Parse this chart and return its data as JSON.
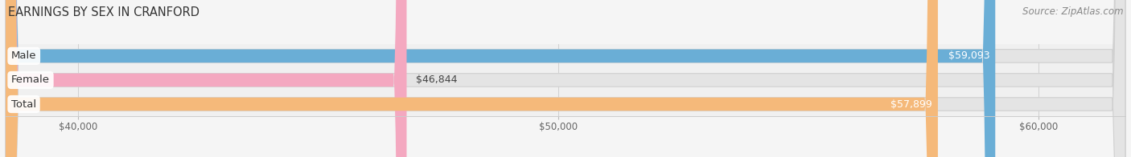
{
  "title": "EARNINGS BY SEX IN CRANFORD",
  "source": "Source: ZipAtlas.com",
  "categories": [
    "Male",
    "Female",
    "Total"
  ],
  "values": [
    59093,
    46844,
    57899
  ],
  "bar_colors": [
    "#6aaed6",
    "#f4a8c0",
    "#f5b97a"
  ],
  "value_labels": [
    "$59,093",
    "$46,844",
    "$57,899"
  ],
  "value_inside": [
    true,
    false,
    true
  ],
  "xmin": 38500,
  "xmax": 61800,
  "xticks": [
    40000,
    50000,
    60000
  ],
  "xtick_labels": [
    "$40,000",
    "$50,000",
    "$60,000"
  ],
  "fig_bg": "#f5f5f5",
  "plot_bg": "#f0f0f0",
  "bar_bg": "#e4e4e4",
  "title_fontsize": 10.5,
  "source_fontsize": 8.5,
  "cat_fontsize": 9.5,
  "value_fontsize": 9
}
